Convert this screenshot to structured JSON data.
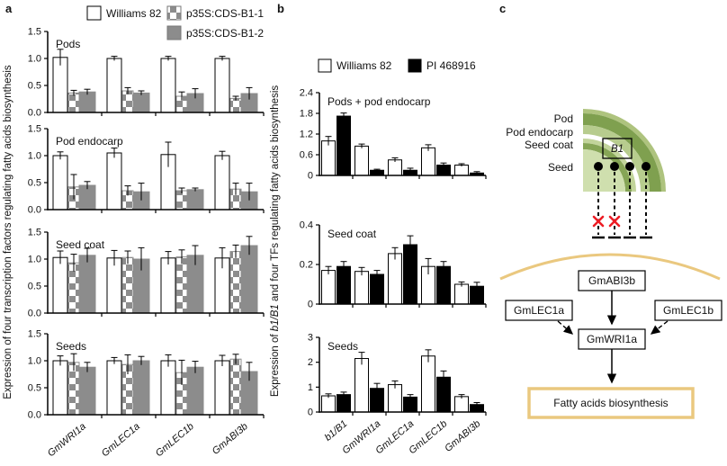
{
  "colors": {
    "bar_white": "#ffffff",
    "bar_gray": "#8c8c8c",
    "bar_black": "#000000",
    "pod_highlight_green": "#aec37e",
    "pod_green": "#7fa04f",
    "pod_endocarp_green": "#b7cc8e",
    "seed_coat_light_green": "#c2d49b",
    "seed_coat_green": "#86a556",
    "seed_green": "#cfdfae",
    "boundary_tan": "#eac87f",
    "cross_red": "#ed1c24"
  },
  "panel_a": {
    "letter": "a",
    "ylabel": "Expression of four transcription factors regulating fatty acids biosynthesis",
    "legend": [
      {
        "label": "Williams 82",
        "swatch": "white"
      },
      {
        "label": "p35S:CDS-B1-1",
        "swatch": "checker"
      },
      {
        "label": "p35S:CDS-B1-2",
        "swatch": "gray"
      }
    ]
  },
  "panel_b": {
    "letter": "b",
    "ylabel_parts": {
      "pre": "Expression of ",
      "italic": "b1/B1",
      "post": " and four TFs regulating fatty acids biosynthesis"
    },
    "legend": [
      {
        "label": "Williams 82",
        "swatch": "white"
      },
      {
        "label": "PI 468916",
        "swatch": "black"
      }
    ]
  },
  "panel_c": {
    "letter": "c",
    "tissue_labels": {
      "pod": "Pod",
      "pod_endocarp": "Pod endocarp",
      "seed_coat": "Seed coat",
      "seed": "Seed"
    },
    "gene_box_label": "B1",
    "network": {
      "top": "GmABI3b",
      "left": "GmLEC1a",
      "right": "GmLEC1b",
      "hub": "GmWRI1a",
      "output": "Fatty acids biosynthesis"
    }
  },
  "chart_data": [
    {
      "panel": "a",
      "type": "bar",
      "title": "Pods",
      "categories": [
        "GmWRI1a",
        "GmLEC1a",
        "GmLEC1b",
        "GmABI3b"
      ],
      "series": [
        {
          "name": "Williams 82",
          "values": [
            1.02,
            1.0,
            1.0,
            1.0
          ],
          "errors": [
            0.15,
            0.04,
            0.04,
            0.04
          ]
        },
        {
          "name": "p35S:CDS-B1-1",
          "values": [
            0.36,
            0.4,
            0.3,
            0.26
          ],
          "errors": [
            0.05,
            0.06,
            0.08,
            0.04
          ]
        },
        {
          "name": "p35S:CDS-B1-2",
          "values": [
            0.38,
            0.36,
            0.35,
            0.35
          ],
          "errors": [
            0.05,
            0.04,
            0.09,
            0.11
          ]
        }
      ],
      "ylim": [
        0,
        1.5
      ],
      "yticks": [
        "0.0",
        "0.5",
        "1.0",
        "1.5"
      ]
    },
    {
      "panel": "a",
      "type": "bar",
      "title": "Pod endocarp",
      "categories": [
        "GmWRI1a",
        "GmLEC1a",
        "GmLEC1b",
        "GmABI3b"
      ],
      "series": [
        {
          "name": "Williams 82",
          "values": [
            1.0,
            1.05,
            1.02,
            1.0
          ],
          "errors": [
            0.07,
            0.09,
            0.23,
            0.08
          ]
        },
        {
          "name": "p35S:CDS-B1-1",
          "values": [
            0.42,
            0.35,
            0.35,
            0.38
          ],
          "errors": [
            0.23,
            0.09,
            0.05,
            0.11
          ]
        },
        {
          "name": "p35S:CDS-B1-2",
          "values": [
            0.45,
            0.33,
            0.37,
            0.33
          ],
          "errors": [
            0.07,
            0.16,
            0.03,
            0.16
          ]
        }
      ],
      "ylim": [
        0,
        1.5
      ],
      "yticks": [
        "0.0",
        "0.5",
        "1.0",
        "1.5"
      ]
    },
    {
      "panel": "a",
      "type": "bar",
      "title": "Seed coat",
      "categories": [
        "GmWRI1a",
        "GmLEC1a",
        "GmLEC1b",
        "GmABI3b"
      ],
      "series": [
        {
          "name": "Williams 82",
          "values": [
            1.03,
            1.02,
            1.02,
            1.02
          ],
          "errors": [
            0.12,
            0.14,
            0.12,
            0.19
          ]
        },
        {
          "name": "p35S:CDS-B1-1",
          "values": [
            0.93,
            1.03,
            1.04,
            1.14
          ],
          "errors": [
            0.16,
            0.12,
            0.13,
            0.12
          ]
        },
        {
          "name": "p35S:CDS-B1-2",
          "values": [
            1.07,
            1.0,
            1.07,
            1.25
          ],
          "errors": [
            0.13,
            0.21,
            0.18,
            0.17
          ]
        }
      ],
      "ylim": [
        0,
        1.5
      ],
      "yticks": [
        "0.0",
        "0.5",
        "1.0",
        "1.5"
      ]
    },
    {
      "panel": "a",
      "type": "bar",
      "title": "Seeds",
      "categories": [
        "GmWRI1a",
        "GmLEC1a",
        "GmLEC1b",
        "GmABI3b"
      ],
      "series": [
        {
          "name": "Williams 82",
          "values": [
            1.0,
            1.0,
            1.0,
            1.0
          ],
          "errors": [
            0.09,
            0.06,
            0.11,
            0.1
          ]
        },
        {
          "name": "p35S:CDS-B1-1",
          "values": [
            0.97,
            0.93,
            0.78,
            1.03
          ],
          "errors": [
            0.16,
            0.18,
            0.23,
            0.09
          ]
        },
        {
          "name": "p35S:CDS-B1-2",
          "values": [
            0.88,
            1.0,
            0.88,
            0.8
          ],
          "errors": [
            0.09,
            0.08,
            0.11,
            0.17
          ]
        }
      ],
      "ylim": [
        0,
        1.5
      ],
      "yticks": [
        "0.0",
        "0.5",
        "1.0",
        "1.5"
      ]
    },
    {
      "panel": "b",
      "type": "bar",
      "title": "Pods + pod endocarp",
      "categories": [
        "b1/B1",
        "GmWRI1a",
        "GmLEC1a",
        "GmLEC1b",
        "GmABI3b"
      ],
      "series": [
        {
          "name": "Williams 82",
          "values": [
            1.0,
            0.85,
            0.45,
            0.8,
            0.3
          ],
          "errors": [
            0.13,
            0.06,
            0.06,
            0.09,
            0.04
          ]
        },
        {
          "name": "PI 468916",
          "values": [
            1.72,
            0.15,
            0.15,
            0.3,
            0.07
          ],
          "errors": [
            0.09,
            0.03,
            0.06,
            0.06,
            0.04
          ]
        }
      ],
      "ylim": [
        0,
        2.4
      ],
      "yticks": [
        "0",
        "0.6",
        "1.2",
        "1.8",
        "2.4"
      ]
    },
    {
      "panel": "b",
      "type": "bar",
      "title": "Seed coat",
      "categories": [
        "b1/B1",
        "GmWRI1a",
        "GmLEC1a",
        "GmLEC1b",
        "GmABI3b"
      ],
      "series": [
        {
          "name": "Williams 82",
          "values": [
            0.17,
            0.165,
            0.255,
            0.19,
            0.1
          ],
          "errors": [
            0.02,
            0.02,
            0.03,
            0.04,
            0.012
          ]
        },
        {
          "name": "PI 468916",
          "values": [
            0.19,
            0.15,
            0.3,
            0.19,
            0.09
          ],
          "errors": [
            0.025,
            0.02,
            0.045,
            0.025,
            0.02
          ]
        }
      ],
      "ylim": [
        0,
        0.4
      ],
      "yticks": [
        "0",
        "0.2",
        "0.4"
      ]
    },
    {
      "panel": "b",
      "type": "bar",
      "title": "Seeds",
      "categories": [
        "b1/B1",
        "GmWRI1a",
        "GmLEC1a",
        "GmLEC1b",
        "GmABI3b"
      ],
      "series": [
        {
          "name": "Williams 82",
          "values": [
            0.65,
            2.15,
            1.1,
            2.25,
            0.62
          ],
          "errors": [
            0.08,
            0.25,
            0.15,
            0.25,
            0.08
          ]
        },
        {
          "name": "PI 468916",
          "values": [
            0.7,
            0.95,
            0.6,
            1.4,
            0.3
          ],
          "errors": [
            0.1,
            0.2,
            0.1,
            0.25,
            0.08
          ]
        }
      ],
      "ylim": [
        0,
        3
      ],
      "yticks": [
        "0",
        "1",
        "2",
        "3"
      ]
    }
  ]
}
